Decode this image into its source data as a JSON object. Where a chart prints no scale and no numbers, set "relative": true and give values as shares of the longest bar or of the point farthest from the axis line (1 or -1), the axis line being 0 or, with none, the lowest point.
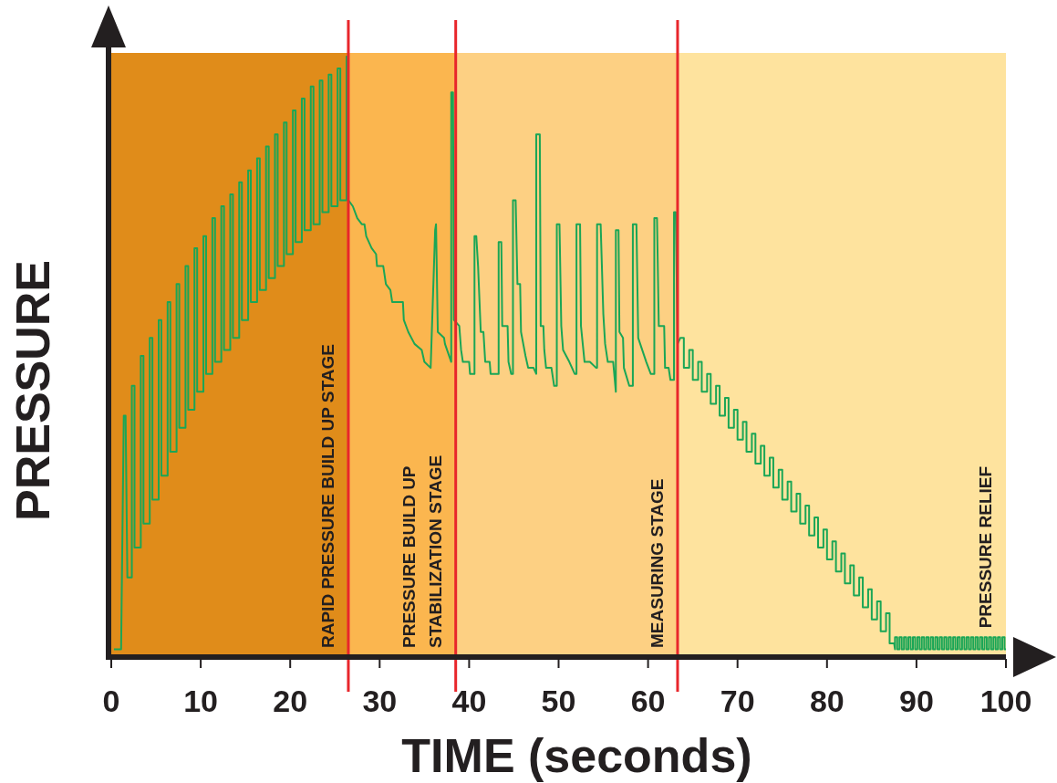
{
  "chart_data": {
    "type": "line",
    "xlabel": "TIME (seconds)",
    "ylabel": "PRESSURE",
    "relative": true,
    "xlim": [
      0,
      100
    ],
    "xticks": [
      0,
      10,
      20,
      30,
      40,
      50,
      60,
      70,
      80,
      90,
      100
    ],
    "bands": [
      {
        "axis": "x",
        "from": 0,
        "to": 26.5,
        "label": "RAPID PRESSURE BUILD UP STAGE",
        "color": "#e08c1a"
      },
      {
        "axis": "x",
        "from": 26.5,
        "to": 38.5,
        "label": "PRESSURE BUILD UP\nSTABILIZATION STAGE",
        "color": "#fbb64f"
      },
      {
        "axis": "x",
        "from": 38.5,
        "to": 63.3,
        "label": "MEASURING STAGE",
        "color": "#fdd083"
      },
      {
        "axis": "x",
        "from": 63.3,
        "to": 100,
        "label": "PRESSURE RELIEF",
        "color": "#fee39e"
      }
    ],
    "ref_lines": [
      {
        "axis": "x",
        "value": 26.5,
        "color": "#e8262b"
      },
      {
        "axis": "x",
        "value": 38.5,
        "color": "#e8262b"
      },
      {
        "axis": "x",
        "value": 63.3,
        "color": "#e8262b"
      }
    ],
    "series": [
      {
        "color": "#1aa656",
        "x": [
          0.3,
          1.1,
          1.4,
          1.6,
          1.8,
          2.3,
          2.3,
          2.6,
          2.6,
          3.3,
          3.3,
          3.6,
          3.6,
          4.3,
          4.3,
          4.6,
          4.6,
          5.3,
          5.3,
          5.6,
          5.6,
          6.3,
          6.3,
          6.6,
          6.6,
          7.3,
          7.3,
          7.6,
          7.6,
          8.3,
          8.3,
          8.6,
          8.6,
          9.3,
          9.3,
          9.6,
          9.6,
          10.3,
          10.3,
          10.6,
          10.6,
          11.3,
          11.3,
          11.6,
          11.6,
          12.3,
          12.3,
          12.6,
          12.6,
          13.3,
          13.3,
          13.6,
          13.6,
          14.3,
          14.3,
          14.6,
          14.6,
          15.3,
          15.3,
          15.6,
          15.6,
          16.3,
          16.3,
          16.6,
          16.6,
          17.3,
          17.3,
          17.6,
          17.6,
          18.3,
          18.3,
          18.6,
          18.6,
          19.3,
          19.3,
          19.6,
          19.6,
          20.3,
          20.3,
          20.6,
          20.6,
          21.3,
          21.3,
          21.6,
          21.6,
          22.3,
          22.3,
          22.6,
          22.6,
          23.3,
          23.3,
          23.6,
          23.6,
          24.3,
          24.3,
          24.6,
          24.6,
          25.3,
          25.3,
          25.6,
          25.6,
          26.3,
          26.3,
          26.5,
          26.5,
          27.0,
          27.5,
          28.0,
          28.3,
          28.5,
          29.1,
          29.6,
          29.7,
          30.4,
          30.7,
          31.2,
          31.4,
          32.6,
          32.7,
          33.2,
          33.9,
          34.7,
          35.0,
          35.7,
          36.2,
          36.3,
          36.5,
          37.2,
          37.3,
          38.0,
          38.0,
          38.2,
          38.3,
          38.9,
          39.1,
          39.3,
          40.0,
          40.1,
          40.6,
          40.6,
          40.8,
          41.0,
          41.3,
          41.6,
          41.8,
          42.3,
          42.4,
          43.3,
          43.3,
          43.6,
          43.7,
          44.3,
          44.4,
          44.7,
          44.9,
          44.9,
          45.2,
          45.4,
          45.7,
          45.8,
          46.3,
          46.6,
          47.2,
          47.5,
          47.5,
          47.9,
          48.0,
          48.3,
          48.4,
          48.6,
          49.2,
          49.5,
          49.8,
          49.8,
          50.1,
          50.3,
          50.5,
          51.2,
          51.8,
          52.0,
          52.0,
          52.4,
          52.5,
          52.9,
          53.5,
          54.2,
          54.3,
          54.3,
          54.7,
          55.0,
          55.2,
          55.5,
          56.1,
          56.4,
          56.4,
          56.7,
          56.8,
          57.2,
          57.3,
          57.9,
          58.3,
          58.3,
          58.7,
          58.9,
          59.8,
          60.3,
          60.7,
          60.7,
          61.0,
          61.2,
          61.8,
          61.9,
          62.3,
          62.5,
          62.9,
          62.9,
          63.1,
          63.3,
          63.6,
          63.6,
          64.0,
          64.0,
          64.6,
          64.6,
          65.0,
          65.0,
          65.6,
          65.6,
          66.0,
          66.0,
          66.6,
          66.6,
          67.0,
          67.0,
          67.6,
          67.6,
          68.0,
          68.0,
          68.6,
          68.6,
          69.0,
          69.0,
          69.6,
          69.6,
          70.0,
          70.0,
          70.6,
          70.6,
          71.0,
          71.0,
          71.6,
          71.6,
          72.0,
          72.0,
          72.6,
          72.6,
          73.0,
          73.0,
          73.6,
          73.6,
          74.0,
          74.0,
          74.6,
          74.6,
          75.0,
          75.0,
          75.6,
          75.6,
          76.0,
          76.0,
          76.6,
          76.6,
          77.0,
          77.0,
          77.6,
          77.6,
          78.0,
          78.0,
          78.6,
          78.6,
          79.0,
          79.0,
          79.6,
          79.6,
          80.0,
          80.0,
          80.6,
          80.6,
          81.0,
          81.0,
          81.6,
          81.6,
          82.0,
          82.0,
          82.6,
          82.6,
          83.0,
          83.0,
          83.6,
          83.6,
          84.0,
          84.0,
          84.6,
          84.6,
          85.0,
          85.0,
          85.6,
          85.6,
          86.0,
          86.0,
          86.6,
          86.6,
          87.0,
          87.0,
          87.5,
          87.6,
          87.6,
          87.85,
          87.85,
          88.1,
          88.1,
          88.35,
          88.35,
          88.6,
          88.6,
          88.85,
          88.85,
          89.1,
          89.1,
          89.35,
          89.35,
          89.6,
          89.6,
          89.85,
          89.85,
          90.1,
          90.1,
          90.35,
          90.35,
          90.6,
          90.6,
          90.85,
          90.85,
          91.1,
          91.1,
          91.35,
          91.35,
          91.6,
          91.6,
          91.85,
          91.85,
          92.1,
          92.1,
          92.35,
          92.35,
          92.6,
          92.6,
          92.85,
          92.85,
          93.1,
          93.1,
          93.35,
          93.35,
          93.6,
          93.6,
          93.85,
          93.85,
          94.1,
          94.1,
          94.35,
          94.35,
          94.6,
          94.6,
          94.85,
          94.85,
          95.1,
          95.1,
          95.35,
          95.35,
          95.6,
          95.6,
          95.85,
          95.85,
          96.1,
          96.1,
          96.35,
          96.35,
          96.6,
          96.6,
          96.85,
          96.85,
          97.1,
          97.1,
          97.35,
          97.35,
          97.6,
          97.6,
          97.85,
          97.85,
          98.1,
          98.1,
          98.35,
          98.35,
          98.6,
          98.6,
          98.85,
          98.85,
          99.1,
          99.1,
          99.35,
          99.35,
          99.6,
          99.6,
          99.85,
          99.85,
          100
        ],
        "values": [
          0.01,
          0.01,
          0.4,
          0.4,
          0.13,
          0.13,
          0.45,
          0.45,
          0.18,
          0.18,
          0.5,
          0.5,
          0.22,
          0.22,
          0.53,
          0.53,
          0.26,
          0.26,
          0.56,
          0.56,
          0.3,
          0.3,
          0.59,
          0.59,
          0.34,
          0.34,
          0.62,
          0.62,
          0.38,
          0.38,
          0.65,
          0.65,
          0.41,
          0.41,
          0.68,
          0.68,
          0.44,
          0.44,
          0.7,
          0.7,
          0.47,
          0.47,
          0.73,
          0.73,
          0.49,
          0.49,
          0.75,
          0.75,
          0.51,
          0.51,
          0.77,
          0.77,
          0.53,
          0.53,
          0.79,
          0.79,
          0.56,
          0.56,
          0.81,
          0.81,
          0.59,
          0.59,
          0.83,
          0.83,
          0.61,
          0.61,
          0.85,
          0.85,
          0.63,
          0.63,
          0.87,
          0.87,
          0.65,
          0.65,
          0.89,
          0.89,
          0.67,
          0.67,
          0.91,
          0.91,
          0.69,
          0.69,
          0.93,
          0.93,
          0.71,
          0.71,
          0.95,
          0.95,
          0.72,
          0.72,
          0.96,
          0.96,
          0.74,
          0.74,
          0.97,
          0.97,
          0.75,
          0.75,
          0.98,
          0.98,
          0.76,
          0.76,
          1,
          1,
          0.76,
          0.75,
          0.73,
          0.72,
          0.72,
          0.7,
          0.68,
          0.67,
          0.65,
          0.65,
          0.62,
          0.61,
          0.59,
          0.59,
          0.56,
          0.54,
          0.52,
          0.51,
          0.49,
          0.48,
          0.71,
          0.72,
          0.54,
          0.53,
          0.52,
          0.49,
          0.94,
          0.94,
          0.56,
          0.55,
          0.51,
          0.49,
          0.49,
          0.47,
          0.47,
          0.7,
          0.7,
          0.65,
          0.54,
          0.54,
          0.49,
          0.49,
          0.47,
          0.47,
          0.69,
          0.69,
          0.55,
          0.55,
          0.49,
          0.47,
          0.47,
          0.76,
          0.76,
          0.62,
          0.62,
          0.54,
          0.5,
          0.48,
          0.48,
          0.47,
          0.87,
          0.87,
          0.55,
          0.55,
          0.51,
          0.48,
          0.48,
          0.45,
          0.45,
          0.72,
          0.72,
          0.55,
          0.51,
          0.49,
          0.47,
          0.47,
          0.72,
          0.72,
          0.55,
          0.49,
          0.49,
          0.48,
          0.48,
          0.72,
          0.72,
          0.57,
          0.52,
          0.49,
          0.49,
          0.44,
          0.71,
          0.71,
          0.54,
          0.53,
          0.48,
          0.45,
          0.45,
          0.72,
          0.72,
          0.53,
          0.49,
          0.47,
          0.47,
          0.73,
          0.73,
          0.55,
          0.55,
          0.48,
          0.48,
          0.46,
          0.46,
          0.74,
          0.74,
          0.52,
          0.53,
          0.53,
          0.53,
          0.48,
          0.48,
          0.51,
          0.51,
          0.46,
          0.46,
          0.49,
          0.49,
          0.44,
          0.44,
          0.47,
          0.47,
          0.42,
          0.42,
          0.45,
          0.45,
          0.4,
          0.4,
          0.43,
          0.43,
          0.38,
          0.38,
          0.41,
          0.41,
          0.36,
          0.36,
          0.39,
          0.39,
          0.34,
          0.34,
          0.37,
          0.37,
          0.32,
          0.32,
          0.35,
          0.35,
          0.3,
          0.3,
          0.33,
          0.33,
          0.28,
          0.28,
          0.31,
          0.31,
          0.26,
          0.26,
          0.29,
          0.29,
          0.24,
          0.24,
          0.27,
          0.27,
          0.22,
          0.22,
          0.25,
          0.25,
          0.2,
          0.2,
          0.23,
          0.23,
          0.18,
          0.18,
          0.21,
          0.21,
          0.16,
          0.16,
          0.19,
          0.19,
          0.14,
          0.14,
          0.17,
          0.17,
          0.12,
          0.12,
          0.15,
          0.15,
          0.1,
          0.1,
          0.13,
          0.13,
          0.08,
          0.08,
          0.11,
          0.11,
          0.06,
          0.06,
          0.09,
          0.09,
          0.04,
          0.04,
          0.07,
          0.07,
          0.02,
          0.02,
          0.01,
          0.03,
          0.03,
          0.01,
          0.01,
          0.03,
          0.03,
          0.01,
          0.01,
          0.03,
          0.03,
          0.01,
          0.01,
          0.03,
          0.03,
          0.01,
          0.01,
          0.03,
          0.03,
          0.01,
          0.01,
          0.03,
          0.03,
          0.01,
          0.01,
          0.03,
          0.03,
          0.01,
          0.01,
          0.03,
          0.03,
          0.01,
          0.01,
          0.03,
          0.03,
          0.01,
          0.01,
          0.03,
          0.03,
          0.01,
          0.01,
          0.03,
          0.03,
          0.01,
          0.01,
          0.03,
          0.03,
          0.01,
          0.01,
          0.03,
          0.03,
          0.01,
          0.01,
          0.03,
          0.03,
          0.01,
          0.01,
          0.03,
          0.03,
          0.01,
          0.01,
          0.03,
          0.03,
          0.01,
          0.01,
          0.03,
          0.03,
          0.01,
          0.01,
          0.03,
          0.03,
          0.01,
          0.01,
          0.03,
          0.03,
          0.01,
          0.01,
          0.03,
          0.03,
          0.01,
          0.01,
          0.03,
          0.03,
          0.01,
          0.01,
          0.03,
          0.03,
          0.01,
          0.01,
          0.03,
          0.03,
          0.01,
          0.01,
          0.03,
          0.03,
          0.01,
          0.01,
          0.03,
          0.03,
          0.01,
          0.01
        ]
      }
    ]
  }
}
